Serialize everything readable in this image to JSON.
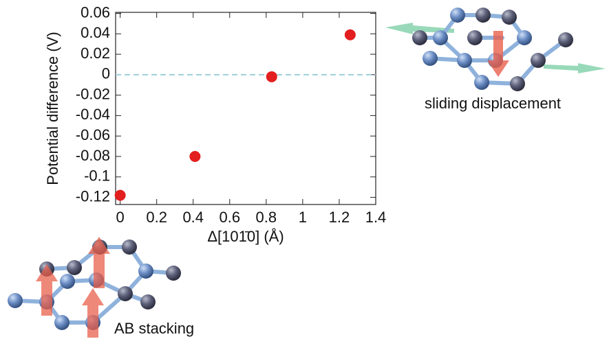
{
  "chart_data": {
    "type": "scatter",
    "x_label": "Δ[101̄0] (Å)",
    "y_label": "Potential difference (V)",
    "x": [
      0,
      0.41,
      0.83,
      1.26
    ],
    "values": [
      -0.118,
      -0.08,
      -0.002,
      0.039
    ],
    "color": "#e31e1e",
    "xlim": [
      -0.025,
      1.4
    ],
    "xticks": [
      0,
      0.2,
      0.4,
      0.6,
      0.8,
      1,
      1.2,
      1.4
    ],
    "ylim": [
      -0.127,
      0.061
    ],
    "yticks": [
      0.06,
      0.04,
      0.02,
      0,
      -0.02,
      -0.04,
      -0.06,
      -0.08,
      -0.1,
      -0.12
    ],
    "reference_line": 0,
    "reference_color": "#9ccfd6",
    "annotations": [
      "sliding displacement",
      "AB stacking"
    ]
  }
}
